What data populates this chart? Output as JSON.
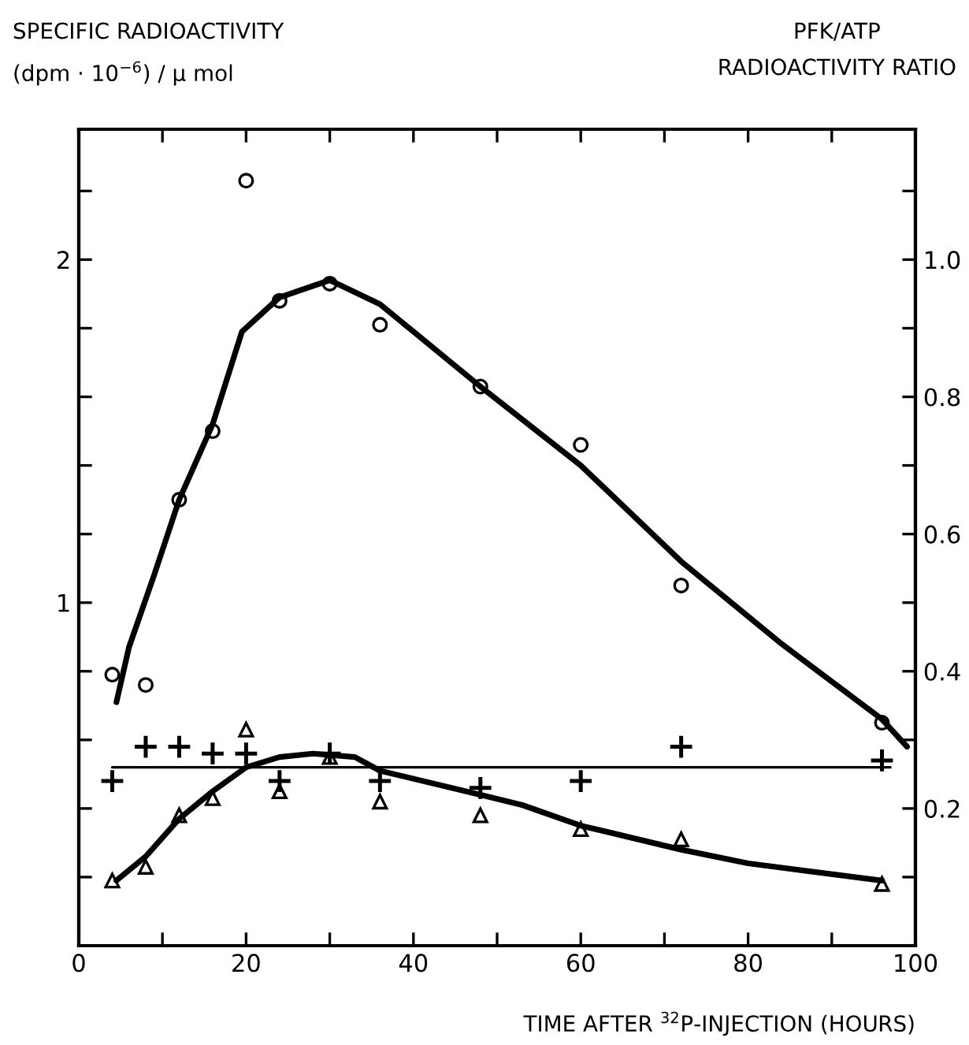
{
  "chart_data": {
    "type": "scatter",
    "ylabel": "SPECIFIC RADIOACTIVITY\n(dpm · 10$^{−6}$) / µ mol",
    "y2label": "PFK/ATP\nRADIOACTIVITY RATIO",
    "xlabel": "TIME AFTER $^{32}$P-INJECTION (HOURS)",
    "xlim": [
      0,
      100
    ],
    "ylim": [
      0,
      2.38
    ],
    "y2lim": [
      0,
      1.19
    ],
    "xticks": [
      0,
      {
        "value": 10,
        "label": null
      },
      20,
      {
        "value": 30,
        "label": null
      },
      40,
      {
        "value": 50,
        "label": null
      },
      60,
      {
        "value": 70,
        "label": null
      },
      80,
      {
        "value": 90,
        "label": null
      },
      100
    ],
    "yticks": [
      {
        "value": 0.2,
        "label": null
      },
      {
        "value": 0.4,
        "label": null
      },
      {
        "value": 0.6,
        "label": null
      },
      {
        "value": 0.8,
        "label": null
      },
      1,
      {
        "value": 1.2,
        "label": null
      },
      {
        "value": 1.4,
        "label": null
      },
      {
        "value": 1.6,
        "label": null
      },
      {
        "value": 1.8,
        "label": null
      },
      2,
      {
        "value": 2.2,
        "label": null
      }
    ],
    "y2ticks": [
      {
        "value": 0.1,
        "label": null
      },
      0.2,
      {
        "value": 0.3,
        "label": null
      },
      0.4,
      {
        "value": 0.5,
        "label": null
      },
      0.6,
      {
        "value": 0.7,
        "label": null
      },
      0.8,
      {
        "value": 0.9,
        "label": null
      },
      {
        "value": 1.0,
        "label": "1.0"
      },
      {
        "value": 1.1,
        "label": null
      }
    ],
    "grid": false,
    "legend": false,
    "series": [
      {
        "marker": "circle",
        "color": "#000000",
        "x": [
          4,
          8,
          12,
          16,
          20,
          24,
          30,
          36,
          48,
          60,
          72,
          96
        ],
        "values": [
          0.79,
          0.76,
          1.3,
          1.5,
          2.23,
          1.88,
          1.93,
          1.81,
          1.63,
          1.46,
          1.05,
          0.65
        ]
      },
      {
        "type": "line",
        "color": "#000000",
        "x": [
          4.5,
          6,
          9,
          12,
          16,
          19.5,
          24,
          30,
          36,
          40,
          48,
          60,
          72,
          84,
          96,
          99
        ],
        "values": [
          0.71,
          0.87,
          1.08,
          1.3,
          1.52,
          1.79,
          1.89,
          1.94,
          1.87,
          1.79,
          1.63,
          1.4,
          1.12,
          0.88,
          0.66,
          0.58
        ]
      },
      {
        "marker": "triangle",
        "color": "#000000",
        "x": [
          4,
          8,
          12,
          16,
          20,
          24,
          30,
          36,
          48,
          60,
          72,
          96
        ],
        "values": [
          0.19,
          0.23,
          0.38,
          0.43,
          0.63,
          0.45,
          0.55,
          0.42,
          0.38,
          0.34,
          0.31,
          0.18
        ]
      },
      {
        "type": "line",
        "color": "#000000",
        "x": [
          4.5,
          8,
          12,
          16,
          20,
          24,
          28,
          33,
          36,
          48,
          53,
          60,
          72,
          80,
          96
        ],
        "values": [
          0.19,
          0.26,
          0.37,
          0.45,
          0.52,
          0.55,
          0.56,
          0.55,
          0.51,
          0.44,
          0.41,
          0.35,
          0.28,
          0.24,
          0.19
        ]
      },
      {
        "marker": "cross",
        "axis": "y2",
        "color": "#000000",
        "x": [
          4,
          8,
          12,
          16,
          20,
          24,
          30,
          36,
          48,
          60,
          72,
          96
        ],
        "values": [
          0.24,
          0.29,
          0.29,
          0.28,
          0.28,
          0.24,
          0.28,
          0.24,
          0.23,
          0.24,
          0.29,
          0.27
        ]
      },
      {
        "type": "line",
        "axis": "y2",
        "color": "#000000",
        "x": [
          4,
          97
        ],
        "values": [
          0.26,
          0.26
        ]
      }
    ]
  }
}
